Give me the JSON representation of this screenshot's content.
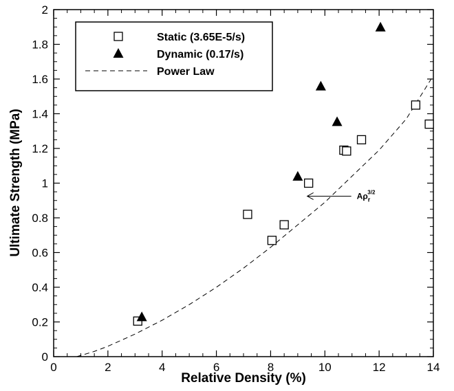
{
  "chart_data": {
    "type": "scatter",
    "title": "",
    "xlabel": "Relative Density (%)",
    "ylabel": "Ultimate Strength (MPa)",
    "xlim": [
      0,
      14
    ],
    "ylim": [
      0,
      2
    ],
    "x_ticks": [
      0,
      2,
      4,
      6,
      8,
      10,
      12,
      14
    ],
    "y_ticks": [
      0,
      0.2,
      0.4,
      0.6,
      0.8,
      1,
      1.2,
      1.4,
      1.6,
      1.8,
      2
    ],
    "x_tick_labels": [
      "0",
      "2",
      "4",
      "6",
      "8",
      "10",
      "12",
      "14"
    ],
    "y_tick_labels": [
      "0",
      "0.2",
      "0.4",
      "0.6",
      "0.8",
      "1",
      "1.2",
      "1.4",
      "1.6",
      "1.8",
      "2"
    ],
    "grid": false,
    "legend_position": "top-left",
    "series": [
      {
        "name": "Static (3.65E-5/s)",
        "marker": "open-square",
        "color": "#000000",
        "x": [
          3.1,
          7.15,
          8.05,
          8.5,
          9.4,
          10.7,
          10.8,
          11.35,
          13.35,
          13.85
        ],
        "y": [
          0.205,
          0.82,
          0.67,
          0.76,
          1.0,
          1.19,
          1.185,
          1.25,
          1.45,
          1.34
        ]
      },
      {
        "name": "Dynamic (0.17/s)",
        "marker": "filled-triangle",
        "color": "#000000",
        "x": [
          3.25,
          9.0,
          9.85,
          10.45,
          12.05
        ],
        "y": [
          0.23,
          1.04,
          1.56,
          1.355,
          1.9
        ]
      },
      {
        "name": "Power Law",
        "line_style": "dashed",
        "color": "#000000",
        "x": [
          0.85,
          1.5,
          2,
          3,
          4,
          5,
          6,
          7,
          8,
          9,
          10,
          11,
          12,
          13,
          14
        ],
        "y": [
          0.0,
          0.03,
          0.06,
          0.13,
          0.21,
          0.3,
          0.4,
          0.51,
          0.63,
          0.76,
          0.89,
          1.04,
          1.19,
          1.37,
          1.62
        ]
      }
    ],
    "annotations": [
      {
        "text": "Aρ",
        "subscript": "r",
        "superscript": "3/2",
        "points_to": {
          "x": 9.35,
          "y": 0.925
        }
      }
    ]
  }
}
